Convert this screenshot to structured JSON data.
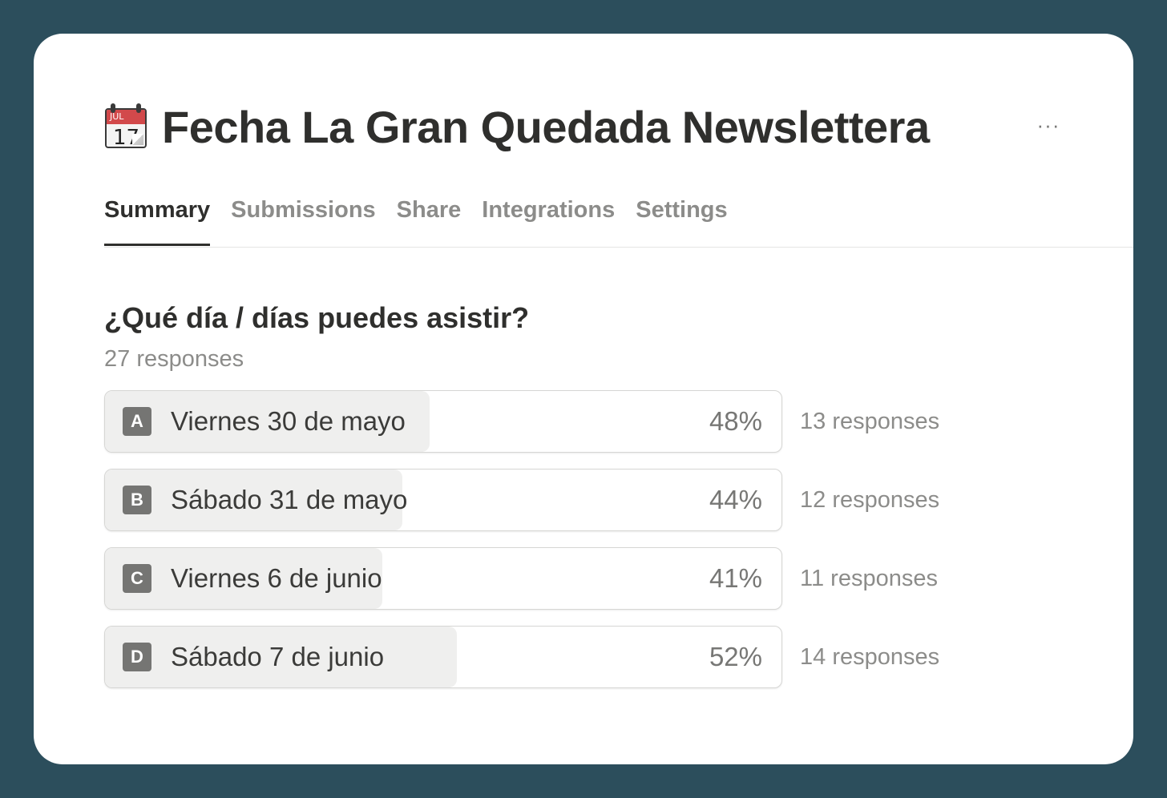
{
  "header": {
    "icon": "calendar-icon",
    "icon_month": "JUL",
    "icon_day": "17",
    "title": "Fecha La Gran Quedada Newslettera",
    "more_label": "···"
  },
  "tabs": [
    {
      "label": "Summary",
      "active": true
    },
    {
      "label": "Submissions",
      "active": false
    },
    {
      "label": "Share",
      "active": false
    },
    {
      "label": "Integrations",
      "active": false
    },
    {
      "label": "Settings",
      "active": false
    }
  ],
  "question": {
    "title": "¿Qué día / días puedes asistir?",
    "responses": "27 responses",
    "options": [
      {
        "letter": "A",
        "label": "Viernes 30 de mayo",
        "percent_label": "48%",
        "percent": 48,
        "responses": "13 responses"
      },
      {
        "letter": "B",
        "label": "Sábado 31 de mayo",
        "percent_label": "44%",
        "percent": 44,
        "responses": "12 responses"
      },
      {
        "letter": "C",
        "label": "Viernes 6 de junio",
        "percent_label": "41%",
        "percent": 41,
        "responses": "11 responses"
      },
      {
        "letter": "D",
        "label": "Sábado 7 de junio",
        "percent_label": "52%",
        "percent": 52,
        "responses": "14 responses"
      }
    ]
  },
  "colors": {
    "background": "#2c4e5c",
    "card": "#ffffff",
    "bar_fill": "#efefee",
    "letter_badge": "#757573"
  }
}
